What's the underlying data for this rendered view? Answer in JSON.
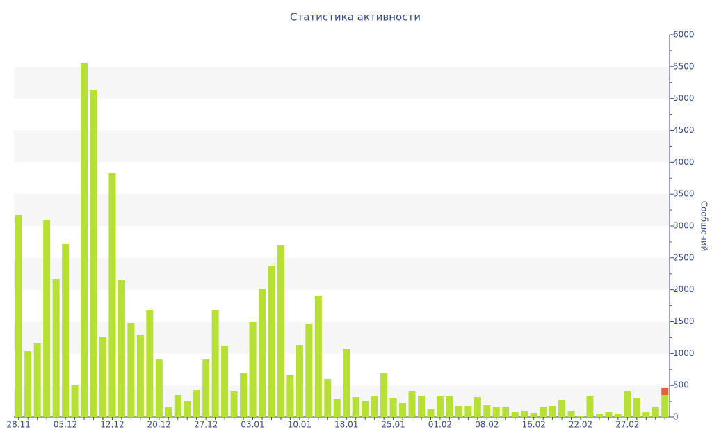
{
  "chart_data": {
    "type": "stacked-bar",
    "title": "Статистика активности",
    "y_label": "Сообщений",
    "y_axis_side": "right",
    "alternate_bands": true,
    "categories": [
      "28.11",
      null,
      null,
      null,
      null,
      "05.12",
      null,
      null,
      null,
      null,
      "12.12",
      null,
      null,
      null,
      null,
      "20.12",
      null,
      null,
      null,
      null,
      "27.12",
      null,
      null,
      null,
      null,
      "03.01",
      null,
      null,
      null,
      null,
      "10.01",
      null,
      null,
      null,
      null,
      "18.01",
      null,
      null,
      null,
      null,
      "25.01",
      null,
      null,
      null,
      null,
      "01.02",
      null,
      null,
      null,
      null,
      "08.02",
      null,
      null,
      null,
      null,
      "16.02",
      null,
      null,
      null,
      null,
      "22.02",
      null,
      null,
      null,
      null,
      "27.02",
      null,
      null,
      null,
      null
    ],
    "series": [
      {
        "color": "#b6e033",
        "values": [
          3175,
          1036,
          1156,
          3087,
          2171,
          2716,
          513,
          5564,
          5127,
          1265,
          3829,
          2149,
          1484,
          1287,
          1680,
          905,
          153,
          349,
          251,
          425,
          905,
          1680,
          1124,
          415,
          687,
          1495,
          2018,
          2367,
          2705,
          665,
          1135,
          1462,
          1898,
          600,
          284,
          1069,
          316,
          262,
          327,
          698,
          295,
          218,
          415,
          338,
          131,
          327,
          327,
          175,
          175,
          316,
          185,
          153,
          164,
          87,
          98,
          65,
          164,
          175,
          273,
          98,
          22,
          327,
          55,
          87,
          44,
          415,
          305,
          87,
          164,
          349
        ]
      },
      {
        "color": "#e0623a",
        "values": [
          null,
          null,
          null,
          null,
          null,
          null,
          null,
          null,
          null,
          null,
          null,
          null,
          null,
          null,
          null,
          null,
          null,
          null,
          null,
          null,
          null,
          null,
          null,
          null,
          null,
          null,
          null,
          null,
          null,
          null,
          null,
          null,
          null,
          null,
          null,
          null,
          null,
          null,
          null,
          null,
          null,
          null,
          null,
          null,
          null,
          null,
          null,
          null,
          null,
          null,
          null,
          null,
          null,
          null,
          null,
          null,
          null,
          null,
          null,
          null,
          null,
          null,
          null,
          null,
          null,
          null,
          null,
          null,
          null,
          110
        ]
      }
    ],
    "ylim": [
      0,
      6000
    ],
    "yticks": [
      0,
      500,
      1000,
      1500,
      2000,
      2500,
      3000,
      3500,
      4000,
      4500,
      5000,
      5500,
      6000
    ]
  }
}
